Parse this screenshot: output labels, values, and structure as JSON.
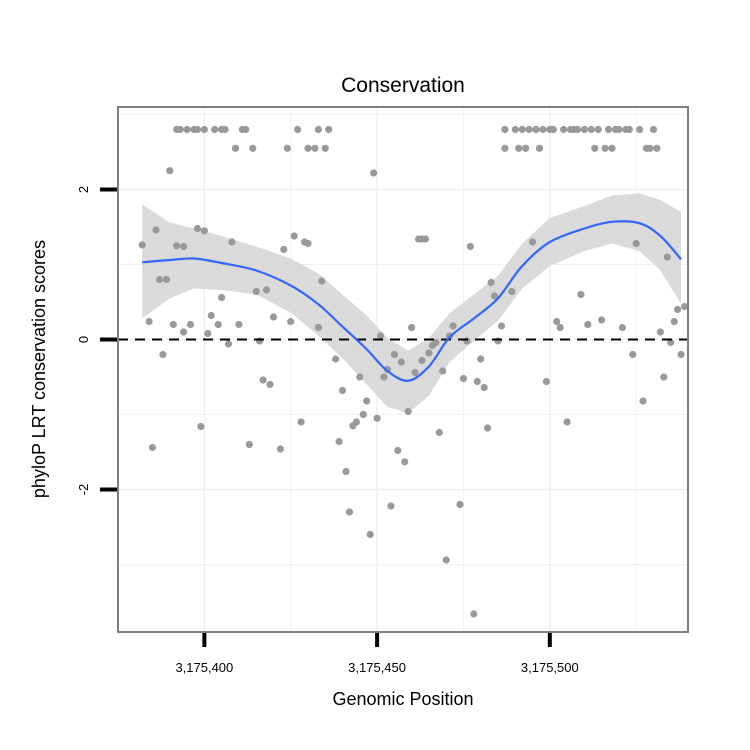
{
  "chart_data": {
    "type": "scatter",
    "title": "Conservation",
    "xlabel": "Genomic Position",
    "ylabel": "phyloP LRT conservation scores",
    "xlim": [
      3175375,
      3175540
    ],
    "ylim": [
      -3.9,
      3.1
    ],
    "x_ticks": [
      3175400,
      3175450,
      3175500
    ],
    "x_tick_labels": [
      "3,175,400",
      "3,175,450",
      "3,175,500"
    ],
    "y_ticks": [
      -2,
      0,
      2
    ],
    "y_tick_labels": [
      "-2",
      "0",
      "2"
    ],
    "reference_line": {
      "y": 0,
      "style": "dashed"
    },
    "grid": true,
    "colors": {
      "points": "#999999",
      "smooth_line": "#3366ff",
      "confidence_band": "#d6d6d6",
      "frame": "#7f7f7f",
      "grid": "#f0f0f0"
    },
    "points": [
      [
        3175382,
        1.26
      ],
      [
        3175384,
        0.24
      ],
      [
        3175385,
        -1.44
      ],
      [
        3175386,
        1.46
      ],
      [
        3175387,
        0.8
      ],
      [
        3175388,
        -0.2
      ],
      [
        3175389,
        0.8
      ],
      [
        3175390,
        2.25
      ],
      [
        3175391,
        0.2
      ],
      [
        3175392,
        1.25
      ],
      [
        3175392,
        2.8
      ],
      [
        3175393,
        2.8
      ],
      [
        3175394,
        1.24
      ],
      [
        3175394,
        0.1
      ],
      [
        3175395,
        2.8
      ],
      [
        3175396,
        0.2
      ],
      [
        3175397,
        2.8
      ],
      [
        3175398,
        1.48
      ],
      [
        3175398,
        2.8
      ],
      [
        3175399,
        -1.16
      ],
      [
        3175400,
        1.45
      ],
      [
        3175400,
        2.8
      ],
      [
        3175401,
        0.08
      ],
      [
        3175402,
        0.32
      ],
      [
        3175403,
        2.8
      ],
      [
        3175404,
        0.2
      ],
      [
        3175405,
        0.56
      ],
      [
        3175405,
        2.8
      ],
      [
        3175406,
        2.8
      ],
      [
        3175407,
        -0.06
      ],
      [
        3175408,
        1.3
      ],
      [
        3175409,
        2.55
      ],
      [
        3175410,
        0.2
      ],
      [
        3175411,
        2.8
      ],
      [
        3175412,
        2.8
      ],
      [
        3175413,
        -1.4
      ],
      [
        3175414,
        2.55
      ],
      [
        3175415,
        0.64
      ],
      [
        3175416,
        -0.02
      ],
      [
        3175417,
        -0.54
      ],
      [
        3175418,
        0.66
      ],
      [
        3175419,
        -0.6
      ],
      [
        3175420,
        0.3
      ],
      [
        3175422,
        -1.46
      ],
      [
        3175423,
        1.2
      ],
      [
        3175424,
        2.55
      ],
      [
        3175425,
        0.24
      ],
      [
        3175426,
        1.38
      ],
      [
        3175427,
        2.8
      ],
      [
        3175428,
        -1.1
      ],
      [
        3175429,
        1.3
      ],
      [
        3175430,
        1.28
      ],
      [
        3175430,
        2.55
      ],
      [
        3175432,
        2.55
      ],
      [
        3175433,
        0.16
      ],
      [
        3175433,
        2.8
      ],
      [
        3175434,
        0.78
      ],
      [
        3175435,
        2.55
      ],
      [
        3175436,
        2.8
      ],
      [
        3175438,
        -0.26
      ],
      [
        3175439,
        -1.36
      ],
      [
        3175440,
        -0.68
      ],
      [
        3175441,
        -1.76
      ],
      [
        3175442,
        -2.3
      ],
      [
        3175443,
        -1.15
      ],
      [
        3175444,
        -1.1
      ],
      [
        3175445,
        -0.5
      ],
      [
        3175446,
        -1.0
      ],
      [
        3175447,
        -0.82
      ],
      [
        3175448,
        -2.6
      ],
      [
        3175449,
        2.22
      ],
      [
        3175450,
        -1.05
      ],
      [
        3175451,
        0.05
      ],
      [
        3175452,
        -0.5
      ],
      [
        3175453,
        -0.4
      ],
      [
        3175454,
        -2.22
      ],
      [
        3175455,
        -0.2
      ],
      [
        3175456,
        -1.48
      ],
      [
        3175457,
        -0.3
      ],
      [
        3175458,
        -1.63
      ],
      [
        3175459,
        -0.96
      ],
      [
        3175460,
        0.16
      ],
      [
        3175461,
        -0.44
      ],
      [
        3175462,
        1.34
      ],
      [
        3175463,
        -0.28
      ],
      [
        3175463,
        1.34
      ],
      [
        3175464,
        1.34
      ],
      [
        3175465,
        -0.18
      ],
      [
        3175466,
        -0.08
      ],
      [
        3175467,
        -0.04
      ],
      [
        3175468,
        -1.24
      ],
      [
        3175469,
        -0.42
      ],
      [
        3175470,
        -2.94
      ],
      [
        3175471,
        0.05
      ],
      [
        3175472,
        0.18
      ],
      [
        3175474,
        -2.2
      ],
      [
        3175475,
        -0.52
      ],
      [
        3175476,
        -0.02
      ],
      [
        3175477,
        1.24
      ],
      [
        3175478,
        -3.66
      ],
      [
        3175479,
        -0.56
      ],
      [
        3175480,
        -0.26
      ],
      [
        3175481,
        -0.64
      ],
      [
        3175482,
        -1.18
      ],
      [
        3175483,
        0.76
      ],
      [
        3175484,
        0.58
      ],
      [
        3175485,
        -0.02
      ],
      [
        3175486,
        0.18
      ],
      [
        3175487,
        2.55
      ],
      [
        3175487,
        2.8
      ],
      [
        3175489,
        0.64
      ],
      [
        3175490,
        2.8
      ],
      [
        3175491,
        2.55
      ],
      [
        3175492,
        2.8
      ],
      [
        3175493,
        2.55
      ],
      [
        3175494,
        2.8
      ],
      [
        3175495,
        1.3
      ],
      [
        3175496,
        2.8
      ],
      [
        3175497,
        2.55
      ],
      [
        3175498,
        2.8
      ],
      [
        3175499,
        -0.56
      ],
      [
        3175500,
        2.8
      ],
      [
        3175501,
        2.8
      ],
      [
        3175502,
        0.24
      ],
      [
        3175503,
        0.16
      ],
      [
        3175504,
        2.8
      ],
      [
        3175505,
        -1.1
      ],
      [
        3175506,
        2.8
      ],
      [
        3175507,
        2.8
      ],
      [
        3175508,
        2.8
      ],
      [
        3175509,
        0.6
      ],
      [
        3175510,
        2.8
      ],
      [
        3175511,
        0.2
      ],
      [
        3175512,
        2.8
      ],
      [
        3175513,
        2.55
      ],
      [
        3175514,
        2.8
      ],
      [
        3175515,
        0.26
      ],
      [
        3175516,
        2.55
      ],
      [
        3175517,
        2.8
      ],
      [
        3175518,
        2.55
      ],
      [
        3175519,
        2.8
      ],
      [
        3175520,
        2.8
      ],
      [
        3175521,
        0.16
      ],
      [
        3175522,
        2.8
      ],
      [
        3175523,
        2.8
      ],
      [
        3175524,
        -0.2
      ],
      [
        3175525,
        1.28
      ],
      [
        3175526,
        2.8
      ],
      [
        3175527,
        -0.82
      ],
      [
        3175528,
        2.55
      ],
      [
        3175529,
        2.55
      ],
      [
        3175530,
        2.8
      ],
      [
        3175531,
        2.55
      ],
      [
        3175532,
        0.1
      ],
      [
        3175533,
        -0.5
      ],
      [
        3175534,
        1.1
      ],
      [
        3175535,
        -0.04
      ],
      [
        3175536,
        0.24
      ],
      [
        3175537,
        0.4
      ],
      [
        3175538,
        -0.2
      ],
      [
        3175539,
        0.44
      ]
    ],
    "smooth": {
      "x": [
        3175382,
        3175390,
        3175397,
        3175405,
        3175415,
        3175425,
        3175433,
        3175440,
        3175447,
        3175453,
        3175459,
        3175465,
        3175471,
        3175478,
        3175485,
        3175492,
        3175500,
        3175510,
        3175518,
        3175526,
        3175532,
        3175538
      ],
      "y": [
        1.03,
        1.06,
        1.08,
        1.02,
        0.92,
        0.72,
        0.47,
        0.17,
        -0.13,
        -0.42,
        -0.55,
        -0.36,
        0.03,
        0.28,
        0.55,
        0.98,
        1.3,
        1.48,
        1.57,
        1.55,
        1.38,
        1.07
      ],
      "lower": [
        0.28,
        0.55,
        0.68,
        0.66,
        0.6,
        0.36,
        0.05,
        -0.25,
        -0.6,
        -0.9,
        -0.98,
        -0.75,
        -0.3,
        -0.02,
        0.25,
        0.68,
        0.98,
        1.18,
        1.28,
        1.18,
        0.92,
        0.48
      ],
      "upper": [
        1.8,
        1.56,
        1.48,
        1.38,
        1.24,
        1.08,
        0.88,
        0.6,
        0.32,
        0.02,
        -0.15,
        0.02,
        0.35,
        0.6,
        0.85,
        1.28,
        1.62,
        1.78,
        1.92,
        1.95,
        1.86,
        1.7
      ]
    }
  }
}
